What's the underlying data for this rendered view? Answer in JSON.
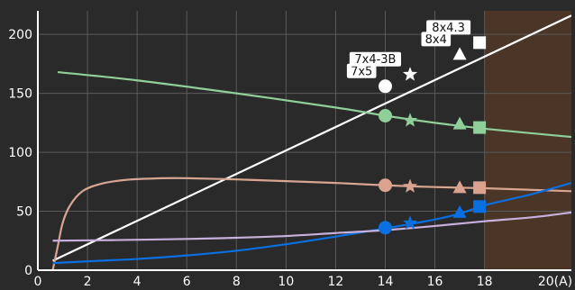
{
  "chart_data": {
    "type": "line",
    "xlim": [
      0,
      21.5
    ],
    "ylim": [
      0,
      220
    ],
    "x_ticks": [
      0,
      2,
      4,
      6,
      8,
      10,
      12,
      14,
      16,
      18
    ],
    "x_tick_labels": [
      "0",
      "2",
      "4",
      "6",
      "8",
      "10",
      "12",
      "14",
      "16",
      "18"
    ],
    "x_unit_label": "20(A)",
    "y_ticks": [
      0,
      50,
      100,
      150,
      200
    ],
    "y_tick_labels": [
      "0",
      "50",
      "100",
      "150",
      "200"
    ],
    "grid": true,
    "highlight_region": {
      "x": [
        18,
        21.5
      ],
      "color": "#4a3526"
    },
    "series": [
      {
        "color": "#ffffff",
        "marker_color": "#ffffff",
        "points": [
          [
            0.6,
            8
          ],
          [
            21.5,
            216
          ]
        ]
      },
      {
        "color": "#8fcf9a",
        "marker_color": "#8fcf9a",
        "points": [
          [
            0.8,
            168
          ],
          [
            4,
            161
          ],
          [
            8,
            150
          ],
          [
            12,
            138
          ],
          [
            14,
            131
          ],
          [
            16,
            125
          ],
          [
            18,
            120
          ],
          [
            21.5,
            113
          ]
        ]
      },
      {
        "color": "#d7a592",
        "marker_color": "#d9a38f",
        "points": [
          [
            0.6,
            0
          ],
          [
            0.8,
            20
          ],
          [
            1.0,
            40
          ],
          [
            1.3,
            55
          ],
          [
            1.8,
            67
          ],
          [
            2.5,
            73
          ],
          [
            3.5,
            76.5
          ],
          [
            5,
            78
          ],
          [
            6,
            78
          ],
          [
            8,
            77
          ],
          [
            10,
            75.5
          ],
          [
            12,
            74
          ],
          [
            14,
            72
          ],
          [
            16,
            70.5
          ],
          [
            18,
            69.5
          ],
          [
            21.5,
            67
          ]
        ]
      },
      {
        "color": "#0a6fe0",
        "marker_color": "#0a6fe0",
        "points": [
          [
            0.6,
            6
          ],
          [
            2,
            7.5
          ],
          [
            4,
            9.5
          ],
          [
            6,
            12.5
          ],
          [
            8,
            16.5
          ],
          [
            10,
            22
          ],
          [
            12,
            28.5
          ],
          [
            14,
            35.5
          ],
          [
            15.1,
            39.5
          ],
          [
            16,
            43
          ],
          [
            17,
            48
          ],
          [
            18,
            55
          ],
          [
            19,
            60
          ],
          [
            20,
            65
          ],
          [
            21.5,
            74
          ]
        ]
      },
      {
        "color": "#c8b0dd",
        "marker_color": "#c8b0dd",
        "points": [
          [
            0.6,
            25
          ],
          [
            3,
            25.5
          ],
          [
            6,
            26.5
          ],
          [
            8,
            27.5
          ],
          [
            10,
            29
          ],
          [
            12,
            31.5
          ],
          [
            14,
            34
          ],
          [
            16,
            37.5
          ],
          [
            18,
            41.5
          ],
          [
            20,
            45
          ],
          [
            21.5,
            49
          ]
        ]
      }
    ],
    "marker_x": [
      14,
      15.0,
      17.0,
      17.8
    ],
    "marker_shapes": [
      "circle",
      "star",
      "triangle",
      "square"
    ],
    "point_labels": [
      "7x5",
      "7x4-3B",
      "8x4",
      "8x4.3"
    ],
    "markers": [
      {
        "series": 0,
        "x": 14,
        "y": 156
      },
      {
        "series": 0,
        "x": 15.0,
        "y": 166
      },
      {
        "series": 0,
        "x": 17.0,
        "y": 183
      },
      {
        "series": 0,
        "x": 17.8,
        "y": 193
      },
      {
        "series": 1,
        "x": 14,
        "y": 131
      },
      {
        "series": 1,
        "x": 15.0,
        "y": 127
      },
      {
        "series": 1,
        "x": 17.0,
        "y": 124
      },
      {
        "series": 1,
        "x": 17.8,
        "y": 121
      },
      {
        "series": 2,
        "x": 14,
        "y": 72
      },
      {
        "series": 2,
        "x": 15.0,
        "y": 71
      },
      {
        "series": 2,
        "x": 17.0,
        "y": 70
      },
      {
        "series": 2,
        "x": 17.8,
        "y": 70
      },
      {
        "series": 3,
        "x": 14,
        "y": 36
      },
      {
        "series": 3,
        "x": 15.0,
        "y": 40
      },
      {
        "series": 3,
        "x": 17.0,
        "y": 49
      },
      {
        "series": 3,
        "x": 17.8,
        "y": 54
      }
    ]
  }
}
